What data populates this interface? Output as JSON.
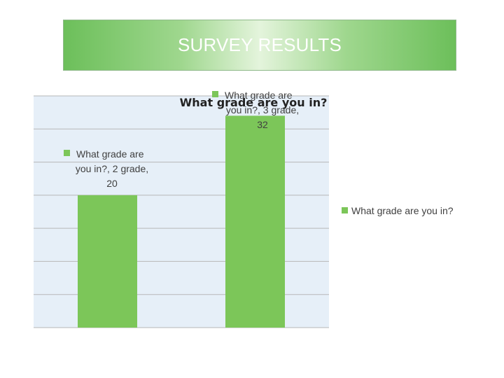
{
  "slide": {
    "title": "SURVEY RESULTS"
  },
  "chart_data": {
    "type": "bar",
    "title": "What grade are you in?",
    "categories": [
      "2 grade",
      "3 grade"
    ],
    "series": [
      {
        "name": "What grade are you in?",
        "values": [
          20,
          32
        ]
      }
    ],
    "ylim": [
      0,
      35
    ],
    "grid": true,
    "legend": "right",
    "data_labels": [
      [
        "What grade are",
        "you in?, 2 grade,",
        "20"
      ],
      [
        "What grade are",
        "you in?, 3 grade,",
        "32"
      ]
    ],
    "colors": {
      "bar": "#7cc659",
      "plot_bg": "#e6eff8",
      "grid": "#b7b7b7"
    }
  }
}
